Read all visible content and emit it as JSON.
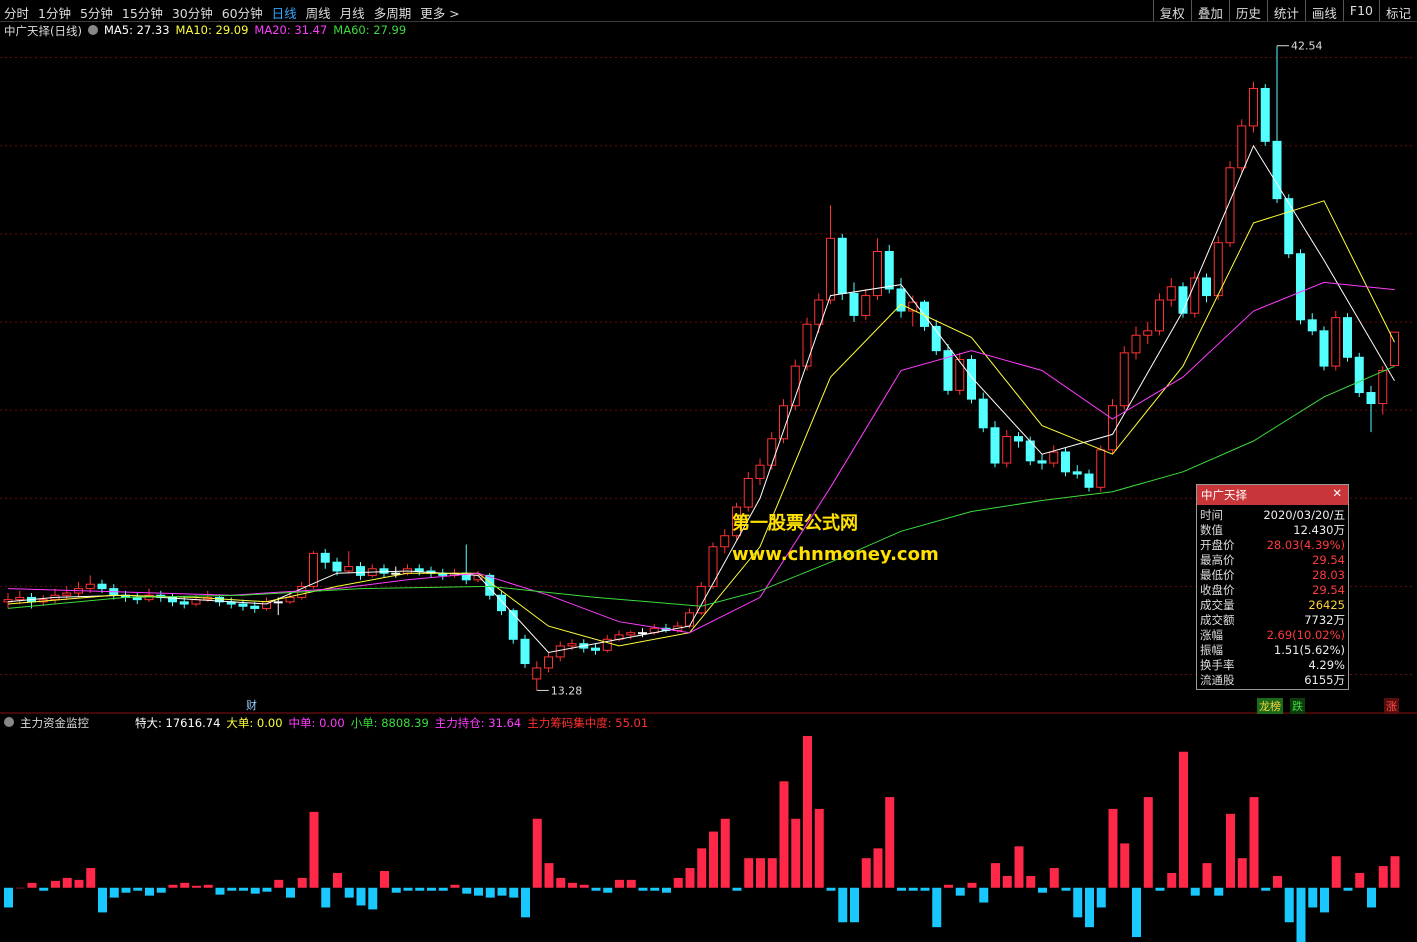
{
  "toolbar": {
    "periods": [
      "分时",
      "1分钟",
      "5分钟",
      "15分钟",
      "30分钟",
      "60分钟",
      "日线",
      "周线",
      "月线",
      "多周期",
      "更多 >"
    ],
    "tools": [
      "复权",
      "叠加",
      "历史",
      "统计",
      "画线",
      "F10",
      "标记"
    ]
  },
  "chart_data": [
    {
      "type": "candlestick",
      "title": "中广天择(日线)",
      "up_color": "#ff3232",
      "down_color": "#54ffff",
      "ylim": [
        12.3,
        42.8
      ],
      "gridlines": [
        14,
        18,
        22,
        26,
        30,
        34,
        38,
        42
      ],
      "candles": [
        [
          17.3,
          17.7,
          17.0,
          17.4
        ],
        [
          17.4,
          17.8,
          17.2,
          17.5
        ],
        [
          17.5,
          17.7,
          17.0,
          17.3
        ],
        [
          17.3,
          17.6,
          17.1,
          17.4
        ],
        [
          17.4,
          17.9,
          17.2,
          17.6
        ],
        [
          17.6,
          18.0,
          17.4,
          17.7
        ],
        [
          17.7,
          18.2,
          17.5,
          17.9
        ],
        [
          17.9,
          18.5,
          17.7,
          18.1
        ],
        [
          18.1,
          18.3,
          17.7,
          17.9
        ],
        [
          17.9,
          18.1,
          17.4,
          17.6
        ],
        [
          17.6,
          17.8,
          17.3,
          17.5
        ],
        [
          17.5,
          17.7,
          17.2,
          17.4
        ],
        [
          17.4,
          17.9,
          17.3,
          17.6
        ],
        [
          17.6,
          17.8,
          17.3,
          17.5
        ],
        [
          17.5,
          17.7,
          17.1,
          17.3
        ],
        [
          17.3,
          17.5,
          17.0,
          17.2
        ],
        [
          17.2,
          17.6,
          17.1,
          17.4
        ],
        [
          17.4,
          17.8,
          17.3,
          17.5
        ],
        [
          17.5,
          17.6,
          17.1,
          17.3
        ],
        [
          17.3,
          17.5,
          17.0,
          17.2
        ],
        [
          17.2,
          17.4,
          16.9,
          17.1
        ],
        [
          17.1,
          17.3,
          16.8,
          17.0
        ],
        [
          17.0,
          17.5,
          16.9,
          17.3
        ],
        [
          17.3,
          17.5,
          16.7,
          17.3
        ],
        [
          17.3,
          17.7,
          17.2,
          17.5
        ],
        [
          17.5,
          18.2,
          17.4,
          18.0
        ],
        [
          18.0,
          19.6,
          17.9,
          19.5
        ],
        [
          19.5,
          19.7,
          18.8,
          19.1
        ],
        [
          19.1,
          19.3,
          18.5,
          18.7
        ],
        [
          18.7,
          19.6,
          18.6,
          18.9
        ],
        [
          18.9,
          19.1,
          18.3,
          18.5
        ],
        [
          18.5,
          19.0,
          18.4,
          18.8
        ],
        [
          18.8,
          19.0,
          18.4,
          18.6
        ],
        [
          18.6,
          18.9,
          18.4,
          18.6
        ],
        [
          18.6,
          19.0,
          18.5,
          18.8
        ],
        [
          18.8,
          19.0,
          18.5,
          18.7
        ],
        [
          18.7,
          18.9,
          18.4,
          18.6
        ],
        [
          18.6,
          18.8,
          18.3,
          18.5
        ],
        [
          18.5,
          18.8,
          18.4,
          18.6
        ],
        [
          18.6,
          19.9,
          18.1,
          18.3
        ],
        [
          18.3,
          18.7,
          18.2,
          18.5
        ],
        [
          18.5,
          18.6,
          17.4,
          17.6
        ],
        [
          17.6,
          17.8,
          16.7,
          16.9
        ],
        [
          16.9,
          17.0,
          15.4,
          15.6
        ],
        [
          15.6,
          15.8,
          14.3,
          14.5
        ],
        [
          13.8,
          14.6,
          13.28,
          14.3
        ],
        [
          14.3,
          15.0,
          14.1,
          14.8
        ],
        [
          14.8,
          15.5,
          14.6,
          15.3
        ],
        [
          15.3,
          15.6,
          15.1,
          15.4
        ],
        [
          15.4,
          15.6,
          15.0,
          15.2
        ],
        [
          15.2,
          15.4,
          14.9,
          15.1
        ],
        [
          15.1,
          15.8,
          15.0,
          15.6
        ],
        [
          15.6,
          16.0,
          15.5,
          15.8
        ],
        [
          15.8,
          16.0,
          15.6,
          15.9
        ],
        [
          15.9,
          16.1,
          15.7,
          15.9
        ],
        [
          15.9,
          16.3,
          15.8,
          16.1
        ],
        [
          16.1,
          16.3,
          15.9,
          16.0
        ],
        [
          16.0,
          16.4,
          15.9,
          16.2
        ],
        [
          16.2,
          17.0,
          16.1,
          16.8
        ],
        [
          16.8,
          18.2,
          16.7,
          18.0
        ],
        [
          18.0,
          20.0,
          17.9,
          19.8
        ],
        [
          19.8,
          20.6,
          19.5,
          20.3
        ],
        [
          20.3,
          21.8,
          20.1,
          21.6
        ],
        [
          21.6,
          23.2,
          21.4,
          22.9
        ],
        [
          22.9,
          23.8,
          22.6,
          23.5
        ],
        [
          23.5,
          25.0,
          23.3,
          24.7
        ],
        [
          24.7,
          26.5,
          24.5,
          26.2
        ],
        [
          26.2,
          28.3,
          26.0,
          28.0
        ],
        [
          28.0,
          30.2,
          27.8,
          29.9
        ],
        [
          29.9,
          31.3,
          29.5,
          31.0
        ],
        [
          31.0,
          35.3,
          30.8,
          33.8
        ],
        [
          33.8,
          34.0,
          31.0,
          31.3
        ],
        [
          31.3,
          31.8,
          30.0,
          30.3
        ],
        [
          30.3,
          31.5,
          30.1,
          31.2
        ],
        [
          31.2,
          33.8,
          31.0,
          33.2
        ],
        [
          33.2,
          33.5,
          31.3,
          31.5
        ],
        [
          31.5,
          32.0,
          30.2,
          30.5
        ],
        [
          30.5,
          31.2,
          29.8,
          30.9
        ],
        [
          30.9,
          31.0,
          29.6,
          29.8
        ],
        [
          29.8,
          30.1,
          28.5,
          28.7
        ],
        [
          28.7,
          29.0,
          26.7,
          26.9
        ],
        [
          26.9,
          28.6,
          26.7,
          28.3
        ],
        [
          28.3,
          28.5,
          26.3,
          26.5
        ],
        [
          26.5,
          26.8,
          25.0,
          25.2
        ],
        [
          25.2,
          25.5,
          23.4,
          23.6
        ],
        [
          23.6,
          25.1,
          23.4,
          24.8
        ],
        [
          24.8,
          25.0,
          24.3,
          24.6
        ],
        [
          24.6,
          24.8,
          23.5,
          23.7
        ],
        [
          23.7,
          24.0,
          23.3,
          23.6
        ],
        [
          23.6,
          24.4,
          23.4,
          24.1
        ],
        [
          24.1,
          24.3,
          23.0,
          23.2
        ],
        [
          23.2,
          23.5,
          22.9,
          23.1
        ],
        [
          23.1,
          23.3,
          22.3,
          22.5
        ],
        [
          22.5,
          24.4,
          22.3,
          24.2
        ],
        [
          24.2,
          26.5,
          24.0,
          26.2
        ],
        [
          26.2,
          28.9,
          26.0,
          28.6
        ],
        [
          28.6,
          29.8,
          28.3,
          29.4
        ],
        [
          29.4,
          30.0,
          29.0,
          29.6
        ],
        [
          29.6,
          31.3,
          29.4,
          31.0
        ],
        [
          31.0,
          32.0,
          30.7,
          31.6
        ],
        [
          31.6,
          31.8,
          30.2,
          30.4
        ],
        [
          30.4,
          32.3,
          30.2,
          32.0
        ],
        [
          32.0,
          32.2,
          30.9,
          31.2
        ],
        [
          31.2,
          33.9,
          31.0,
          33.6
        ],
        [
          33.6,
          37.3,
          33.4,
          37.0
        ],
        [
          37.0,
          39.2,
          36.8,
          38.9
        ],
        [
          38.9,
          40.9,
          38.6,
          40.6
        ],
        [
          40.6,
          40.8,
          38.0,
          38.2
        ],
        [
          38.2,
          42.54,
          35.4,
          35.6
        ],
        [
          35.6,
          35.8,
          32.9,
          33.1
        ],
        [
          33.1,
          33.3,
          29.9,
          30.1
        ],
        [
          30.1,
          30.4,
          29.4,
          29.6
        ],
        [
          29.6,
          29.8,
          27.8,
          28.0
        ],
        [
          28.0,
          30.5,
          27.8,
          30.2
        ],
        [
          30.2,
          30.4,
          28.2,
          28.4
        ],
        [
          28.4,
          28.6,
          26.6,
          26.8
        ],
        [
          26.8,
          27.1,
          25.0,
          26.3
        ],
        [
          26.3,
          28.0,
          25.8,
          27.8
        ],
        [
          28.03,
          29.54,
          28.03,
          29.54
        ]
      ],
      "series": [
        {
          "name": "MA5",
          "legend": "MA5: 27.33",
          "color": "#ffffff",
          "x": [
            0,
            4,
            10,
            16,
            22,
            28,
            34,
            40,
            46,
            52,
            58,
            64,
            70,
            76,
            82,
            88,
            94,
            100,
            106,
            112,
            118
          ],
          "values": [
            17.3,
            17.5,
            17.6,
            17.4,
            17.2,
            18.6,
            18.7,
            18.5,
            15.0,
            15.6,
            16.2,
            22.0,
            31.2,
            31.7,
            27.5,
            24.0,
            24.9,
            30.5,
            38.0,
            32.8,
            27.33
          ]
        },
        {
          "name": "MA10",
          "legend": "MA10: 29.09",
          "color": "#ffff3c",
          "x": [
            0,
            9,
            16,
            22,
            28,
            34,
            40,
            46,
            52,
            58,
            64,
            70,
            76,
            82,
            88,
            94,
            100,
            106,
            112,
            118
          ],
          "values": [
            17.2,
            17.6,
            17.5,
            17.3,
            18.0,
            18.6,
            18.6,
            16.2,
            15.3,
            15.9,
            19.8,
            27.5,
            30.8,
            29.3,
            25.3,
            24.0,
            28.0,
            34.5,
            35.5,
            29.09
          ]
        },
        {
          "name": "MA20",
          "legend": "MA20: 31.47",
          "color": "#ff3cff",
          "x": [
            0,
            19,
            28,
            34,
            40,
            46,
            52,
            58,
            64,
            70,
            76,
            82,
            88,
            94,
            100,
            106,
            112,
            118
          ],
          "values": [
            17.9,
            17.6,
            17.9,
            18.3,
            18.6,
            17.6,
            16.4,
            15.9,
            17.5,
            22.5,
            27.8,
            28.7,
            27.8,
            25.6,
            27.5,
            30.5,
            31.8,
            31.47
          ]
        },
        {
          "name": "MA60",
          "legend": "MA60: 27.99",
          "color": "#3cdc3c",
          "x": [
            0,
            10,
            20,
            30,
            41,
            50,
            59,
            64,
            70,
            76,
            82,
            88,
            94,
            100,
            106,
            112,
            118
          ],
          "values": [
            17.0,
            17.5,
            17.6,
            17.9,
            18.0,
            17.5,
            17.1,
            17.8,
            19.1,
            20.5,
            21.4,
            21.9,
            22.3,
            23.2,
            24.6,
            26.6,
            27.99
          ]
        }
      ],
      "watermark": [
        "第一股票公式网",
        "www.chnmoney.com"
      ],
      "marker": "财",
      "badges": [
        "龙榜",
        "跌",
        "涨"
      ]
    },
    {
      "type": "bar",
      "title": "主力资金监控",
      "ylim": [
        -53,
        157
      ],
      "up_color": "#ff2848",
      "down_color": "#18c8ff",
      "legend": [
        {
          "text": "特大: 17616.74",
          "color": "#ffffff"
        },
        {
          "text": "大单: 0.00",
          "color": "#ffff3c"
        },
        {
          "text": "中单: 0.00",
          "color": "#ff3cff"
        },
        {
          "text": "小单: 8808.39",
          "color": "#3cdc3c"
        },
        {
          "text": "主力持仓: 31.64",
          "color": "#ff3cff"
        },
        {
          "text": "主力筹码集中度: 55.01",
          "color": "#ff3030"
        }
      ],
      "values": [
        -20,
        0,
        5,
        -3,
        7,
        10,
        8,
        20,
        -25,
        -10,
        -5,
        -3,
        -8,
        -5,
        3,
        5,
        2,
        3,
        -7,
        -3,
        -3,
        -6,
        -4,
        8,
        -10,
        10,
        77,
        -20,
        15,
        -10,
        -18,
        -22,
        17,
        -5,
        -3,
        -3,
        -3,
        -3,
        3,
        -6,
        -8,
        -10,
        -8,
        -10,
        -30,
        70,
        25,
        10,
        5,
        3,
        -3,
        -5,
        8,
        8,
        -3,
        -3,
        -5,
        10,
        20,
        40,
        57,
        70,
        -3,
        30,
        30,
        30,
        108,
        70,
        154,
        80,
        -3,
        -35,
        -35,
        30,
        40,
        92,
        -3,
        -3,
        -3,
        -40,
        3,
        -8,
        5,
        -15,
        25,
        12,
        42,
        12,
        -5,
        20,
        -3,
        -30,
        -40,
        -20,
        80,
        45,
        -50,
        92,
        -3,
        15,
        138,
        -8,
        25,
        -8,
        75,
        30,
        92,
        -3,
        12,
        -35,
        -55,
        -20,
        -25,
        32,
        -3,
        15,
        -20,
        22,
        32
      ]
    }
  ],
  "info_panel": {
    "title": "中广天择",
    "close": "✕",
    "rows": [
      [
        "时间",
        "2020/03/20/五"
      ],
      [
        "数值",
        "12.430万"
      ],
      [
        "开盘价",
        "28.03(4.39%)"
      ],
      [
        "最高价",
        "29.54"
      ],
      [
        "最低价",
        "28.03"
      ],
      [
        "收盘价",
        "29.54"
      ],
      [
        "成交量",
        "26425"
      ],
      [
        "成交额",
        "7732万"
      ],
      [
        "涨幅",
        "2.69(10.02%)"
      ],
      [
        "振幅",
        "1.51(5.62%)"
      ],
      [
        "换手率",
        "4.29%"
      ],
      [
        "流通股",
        "6155万"
      ]
    ]
  }
}
